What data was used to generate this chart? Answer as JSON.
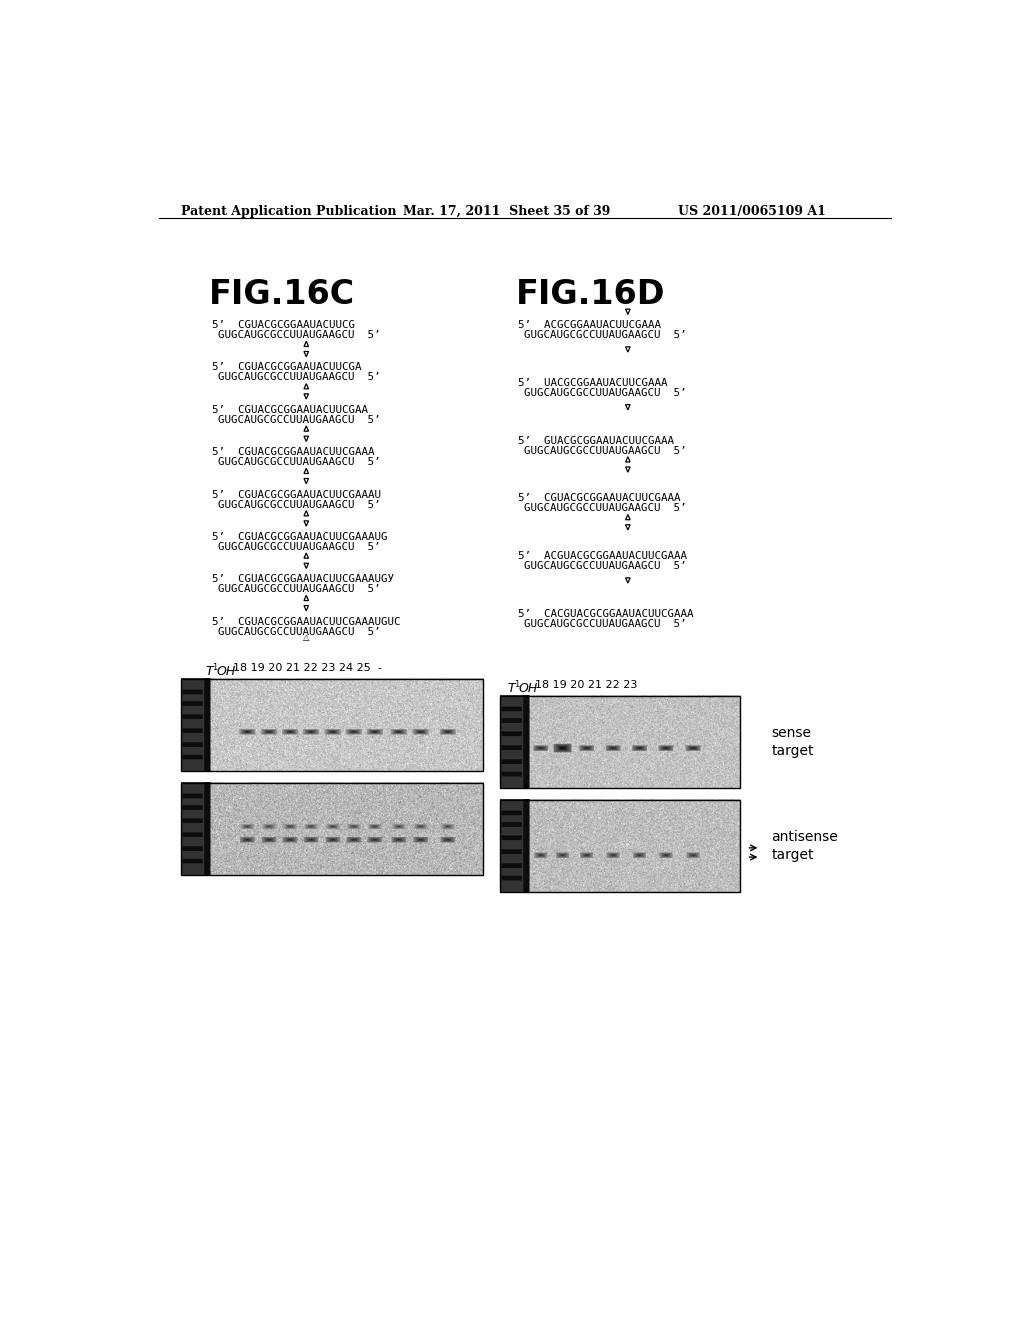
{
  "header_left": "Patent Application Publication",
  "header_mid": "Mar. 17, 2011  Sheet 35 of 39",
  "header_right": "US 2011/0065109 A1",
  "fig16c_title": "FIG.16C",
  "fig16d_title": "FIG.16D",
  "seqs_c": [
    [
      "5’  CGUACGCGGAAUACUUCG",
      "GUGCAUGCGCCUUAUGAAGCU  5’"
    ],
    [
      "5’  CGUACGCGGAAUACUUCGA",
      "GUGCAUGCGCCUUAUGAAGCU  5’"
    ],
    [
      "5’  CGUACGCGGAAUACUUCGAA",
      "GUGCAUGCGCCUUAUGAAGCU  5’"
    ],
    [
      "5’  CGUACGCGGAAUACUUCGAAA",
      "GUGCAUGCGCCUUAUGAAGCU  5’"
    ],
    [
      "5’  CGUACGCGGAAUACUUCGAAAU",
      "GUGCAUGCGCCUUAUGAAGCU  5’"
    ],
    [
      "5’  CGUACGCGGAAUACUUCGAAAUG",
      "GUGCAUGCGCCUUAUGAAGCU  5’"
    ],
    [
      "5’  CGUACGCGGAAUACUUCGAAAUGУ",
      "GUGCAUGCGCCUUAUGAAGCU  5’"
    ],
    [
      "5’  CGUACGCGGAAUACUUCGAAAUGUC",
      "GUGCAUGCGCCUUAUGAAGCU  5’"
    ]
  ],
  "seqs_d": [
    [
      "5’  ACGCGGAAUACUUCGAAA",
      "GUGCAUGCGCCUUAUGAAGCU  5’"
    ],
    [
      "5’  UACGCGGAAUACUUCGAAA",
      "GUGCAUGCGCCUUAUGAAGCU  5’"
    ],
    [
      "5’  GUACGCGGAAUACUUCGAAA",
      "GUGCAUGCGCCUUAUGAAGCU  5’"
    ],
    [
      "5’  CGUACGCGGAAUACUUCGAAA",
      "GUGCAUGCGCCUUAUGAAGCU  5’"
    ],
    [
      "5’  ACGUACGCGGAAUACUUCGAAA",
      "GUGCAUGCGCCUUAUGAAGCU  5’"
    ],
    [
      "5’  CACGUACGCGGAAUACUUCGAAA",
      "GUGCAUGCGCCUUAUGAAGCU  5’"
    ]
  ],
  "bg_color": "#ffffff",
  "text_color": "#000000"
}
